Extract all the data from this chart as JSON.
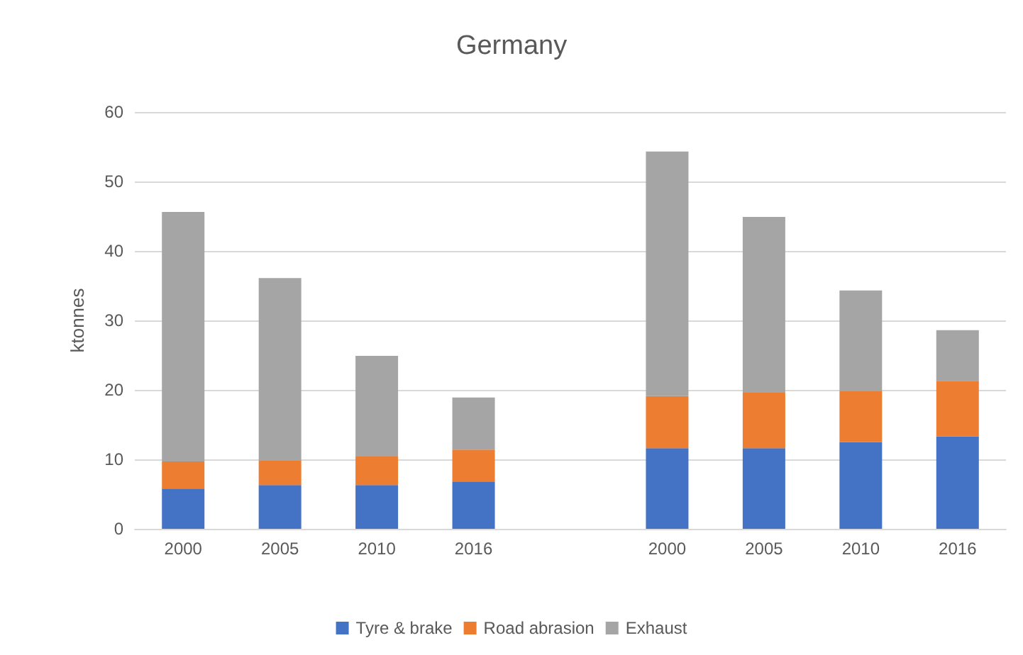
{
  "chart_data": {
    "type": "bar",
    "title": "Germany",
    "ylabel": "ktonnes",
    "stacked": true,
    "grid": "y",
    "legend": "bottom",
    "categories": [
      "2000",
      "2005",
      "2010",
      "2016",
      null,
      "2000",
      "2005",
      "2010",
      "2016"
    ],
    "ylim": [
      0,
      60
    ],
    "yticks": [
      0,
      10,
      20,
      30,
      40,
      50,
      60
    ],
    "series": [
      {
        "name": "Tyre & brake",
        "color": "#4472c4",
        "values": [
          5.8,
          6.3,
          6.3,
          6.8,
          null,
          11.6,
          11.6,
          12.5,
          13.3
        ]
      },
      {
        "name": "Road abrasion",
        "color": "#ed7d31",
        "values": [
          3.9,
          3.5,
          4.1,
          4.6,
          null,
          7.5,
          8.0,
          7.3,
          8.0
        ]
      },
      {
        "name": "Exhaust",
        "color": "#a5a5a5",
        "values": [
          35.9,
          26.3,
          14.5,
          7.5,
          null,
          35.2,
          25.3,
          14.5,
          7.3
        ]
      }
    ]
  }
}
